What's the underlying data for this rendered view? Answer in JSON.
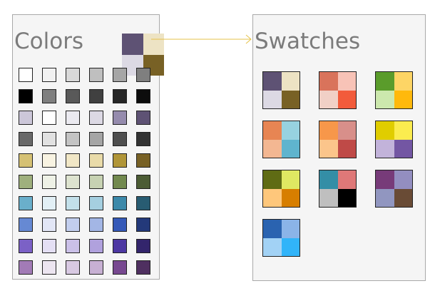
{
  "colors_panel": {
    "title": "Colors"
  },
  "swatches_panel": {
    "title": "Swatches"
  },
  "selected_swatch": [
    "#5e5274",
    "#ede3c4",
    "#dcd9e4",
    "#786125"
  ],
  "connector_color": "#e6c24a",
  "color_grid": [
    [
      "#ffffff",
      "#f1f1f1",
      "#d9d9d9",
      "#bfbfbf",
      "#a6a6a6",
      "#7f7f7f"
    ],
    [
      "#000000",
      "#7f7f7f",
      "#595959",
      "#404040",
      "#262626",
      "#0d0d0d"
    ],
    [
      "#ccc7d9",
      "#ffffff",
      "#ebeaf0",
      "#dcd9e4",
      "#958bad",
      "#5e5274"
    ],
    [
      "#696969",
      "#e1e1e1",
      "#c3c3c3",
      "#a5a5a5",
      "#4f4f4f",
      "#333333"
    ],
    [
      "#d5c174",
      "#f8f3e2",
      "#f1e7c6",
      "#e9dba9",
      "#b09538",
      "#786125"
    ],
    [
      "#9fb07d",
      "#eef1e6",
      "#dde3cf",
      "#c7d2b2",
      "#72894e",
      "#4c5c34"
    ],
    [
      "#6aafcb",
      "#e2eff5",
      "#c3e0ea",
      "#a5cfe0",
      "#3c89aa",
      "#285c72"
    ],
    [
      "#6689d3",
      "#e2e6f6",
      "#c2ceee",
      "#a3b6e5",
      "#3559b8",
      "#23397a"
    ],
    [
      "#7b61c6",
      "#e4dff4",
      "#cac0e8",
      "#b0a1dd",
      "#4d37a2",
      "#33256c"
    ],
    [
      "#a27bb6",
      "#ece5f0",
      "#d8c9e2",
      "#c7b0d3",
      "#774890",
      "#4f3060"
    ]
  ],
  "swatches": [
    [
      "#5e5274",
      "#ede3c4",
      "#dcd9e4",
      "#786125"
    ],
    [
      "#d9735b",
      "#f8c3b7",
      "#f1d0c6",
      "#f25b3b"
    ],
    [
      "#5a9c2b",
      "#fdd565",
      "#cce8ad",
      "#ffb90c"
    ],
    [
      "#e78553",
      "#97d2e0",
      "#f3b792",
      "#5fb4ce"
    ],
    [
      "#f7974a",
      "#d88f8a",
      "#fbc58b",
      "#bf4a47"
    ],
    [
      "#e0cd00",
      "#fbec4f",
      "#c2b3da",
      "#7356a3"
    ],
    [
      "#5f6b14",
      "#dfe862",
      "#fec77b",
      "#d77e00"
    ],
    [
      "#348ea6",
      "#df7878",
      "#bfbfbf",
      "#000000"
    ],
    [
      "#773b79",
      "#938ec0",
      "#9196c0",
      "#694b35"
    ],
    [
      "#2a63b0",
      "#8bb4e8",
      "#a2d2f5",
      "#31b4f9"
    ]
  ]
}
